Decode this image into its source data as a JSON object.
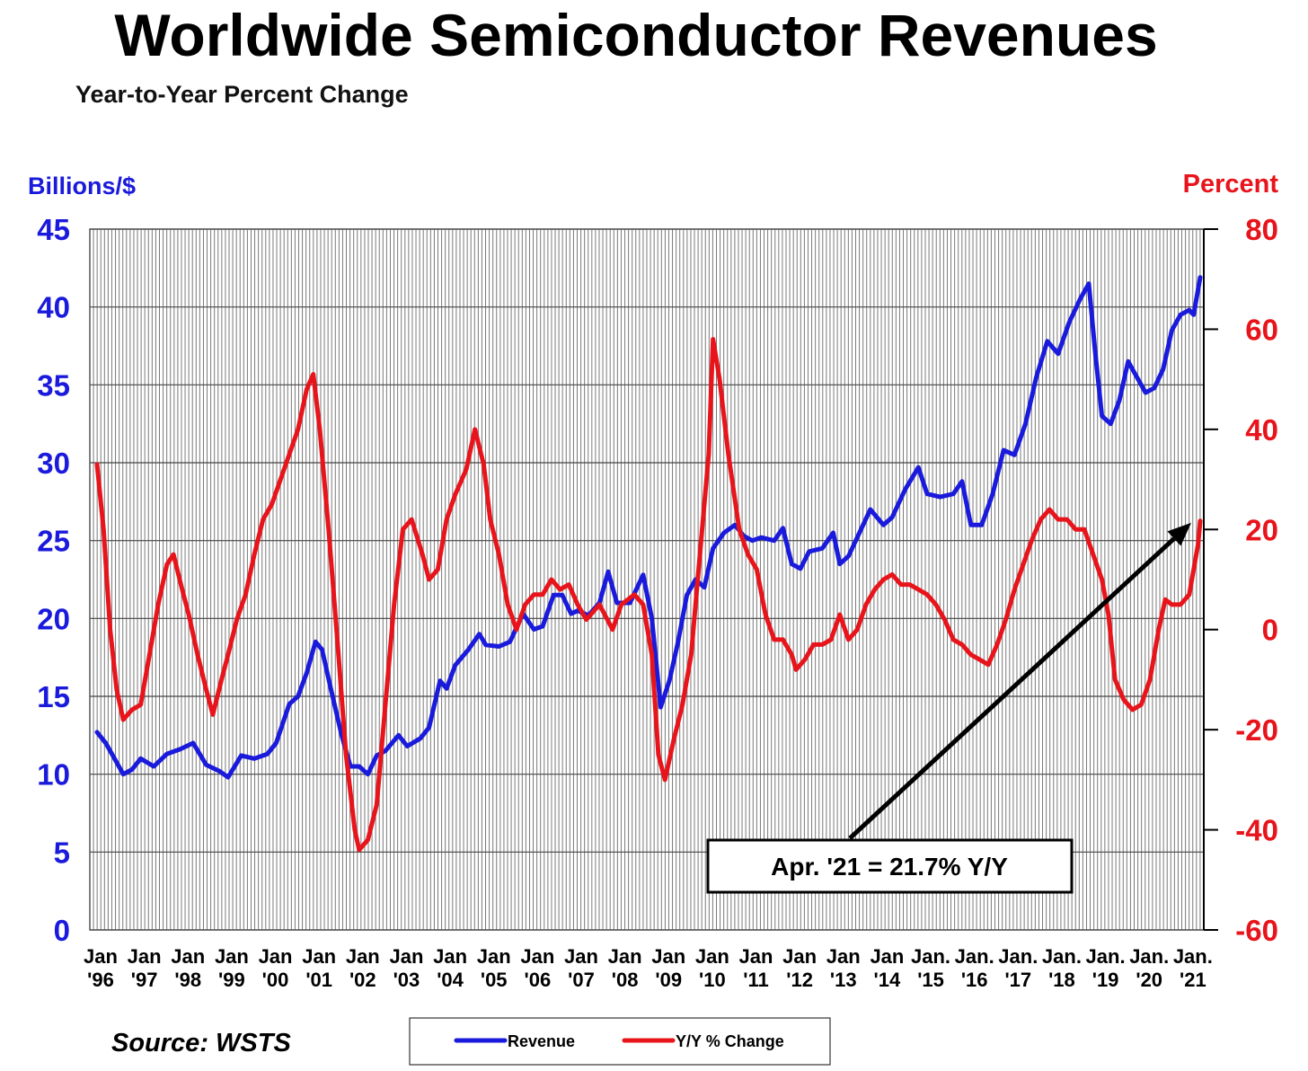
{
  "title": "Worldwide Semiconductor Revenues",
  "subtitle": "Year-to-Year Percent Change",
  "source": "Source: WSTS",
  "chart_data": {
    "type": "line",
    "x_range": [
      1996.0,
      2021.25
    ],
    "x_ticks": [
      {
        "x": 1996,
        "line1": "Jan",
        "line2": "'96"
      },
      {
        "x": 1997,
        "line1": "Jan",
        "line2": "'97"
      },
      {
        "x": 1998,
        "line1": "Jan",
        "line2": "'98"
      },
      {
        "x": 1999,
        "line1": "Jan",
        "line2": "'99"
      },
      {
        "x": 2000,
        "line1": "Jan",
        "line2": "'00"
      },
      {
        "x": 2001,
        "line1": "Jan",
        "line2": "'01"
      },
      {
        "x": 2002,
        "line1": "Jan",
        "line2": "'02"
      },
      {
        "x": 2003,
        "line1": "Jan",
        "line2": "'03"
      },
      {
        "x": 2004,
        "line1": "Jan",
        "line2": "'04"
      },
      {
        "x": 2005,
        "line1": "Jan",
        "line2": "'05"
      },
      {
        "x": 2006,
        "line1": "Jan",
        "line2": "'06"
      },
      {
        "x": 2007,
        "line1": "Jan",
        "line2": "'07"
      },
      {
        "x": 2008,
        "line1": "Jan",
        "line2": "'08"
      },
      {
        "x": 2009,
        "line1": "Jan",
        "line2": "'09"
      },
      {
        "x": 2010,
        "line1": "Jan",
        "line2": "'10"
      },
      {
        "x": 2011,
        "line1": "Jan",
        "line2": "'11"
      },
      {
        "x": 2012,
        "line1": "Jan",
        "line2": "'12"
      },
      {
        "x": 2013,
        "line1": "Jan",
        "line2": "'13"
      },
      {
        "x": 2014,
        "line1": "Jan",
        "line2": "'14"
      },
      {
        "x": 2015,
        "line1": "Jan.",
        "line2": "'15"
      },
      {
        "x": 2016,
        "line1": "Jan.",
        "line2": "'16"
      },
      {
        "x": 2017,
        "line1": "Jan.",
        "line2": "'17"
      },
      {
        "x": 2018,
        "line1": "Jan.",
        "line2": "'18"
      },
      {
        "x": 2019,
        "line1": "Jan.",
        "line2": "'19"
      },
      {
        "x": 2020,
        "line1": "Jan.",
        "line2": "'20"
      },
      {
        "x": 2021,
        "line1": "Jan.",
        "line2": "'21"
      }
    ],
    "left_axis": {
      "label": "Billions/$",
      "range": [
        0,
        45
      ],
      "ticks": [
        0,
        5,
        10,
        15,
        20,
        25,
        30,
        35,
        40,
        45
      ],
      "color": "#1a1adc"
    },
    "right_axis": {
      "label": "Percent",
      "range": [
        -60,
        80
      ],
      "ticks": [
        -60,
        -40,
        -20,
        0,
        20,
        40,
        60,
        80
      ],
      "color": "#e8141b"
    },
    "grid": "monthly vertical lines, horizontal lines at left-axis ticks",
    "legend_position": "bottom-center",
    "series": [
      {
        "name": "Revenue",
        "axis": "left",
        "color": "#1a1adc",
        "points": [
          [
            1996.0,
            12.7
          ],
          [
            1996.2,
            12.0
          ],
          [
            1996.4,
            11.0
          ],
          [
            1996.6,
            10.0
          ],
          [
            1996.8,
            10.3
          ],
          [
            1997.0,
            11.0
          ],
          [
            1997.3,
            10.5
          ],
          [
            1997.6,
            11.3
          ],
          [
            1997.9,
            11.6
          ],
          [
            1998.2,
            12.0
          ],
          [
            1998.5,
            10.6
          ],
          [
            1998.8,
            10.2
          ],
          [
            1999.0,
            9.8
          ],
          [
            1999.3,
            11.2
          ],
          [
            1999.6,
            11.0
          ],
          [
            1999.9,
            11.3
          ],
          [
            2000.1,
            12.0
          ],
          [
            2000.4,
            14.5
          ],
          [
            2000.6,
            15.0
          ],
          [
            2000.8,
            16.5
          ],
          [
            2001.0,
            18.5
          ],
          [
            2001.15,
            18.0
          ],
          [
            2001.35,
            15.5
          ],
          [
            2001.6,
            12.5
          ],
          [
            2001.8,
            10.5
          ],
          [
            2002.0,
            10.5
          ],
          [
            2002.2,
            10.0
          ],
          [
            2002.4,
            11.2
          ],
          [
            2002.6,
            11.5
          ],
          [
            2002.9,
            12.5
          ],
          [
            2003.1,
            11.8
          ],
          [
            2003.4,
            12.3
          ],
          [
            2003.6,
            13.0
          ],
          [
            2003.85,
            16.0
          ],
          [
            2004.0,
            15.5
          ],
          [
            2004.2,
            17.0
          ],
          [
            2004.5,
            18.0
          ],
          [
            2004.75,
            19.0
          ],
          [
            2004.9,
            18.3
          ],
          [
            2005.2,
            18.2
          ],
          [
            2005.45,
            18.5
          ],
          [
            2005.75,
            20.3
          ],
          [
            2006.0,
            19.3
          ],
          [
            2006.2,
            19.5
          ],
          [
            2006.45,
            21.5
          ],
          [
            2006.65,
            21.5
          ],
          [
            2006.85,
            20.3
          ],
          [
            2007.0,
            20.5
          ],
          [
            2007.25,
            20.2
          ],
          [
            2007.5,
            21.0
          ],
          [
            2007.7,
            23.0
          ],
          [
            2007.9,
            21.0
          ],
          [
            2008.2,
            21.0
          ],
          [
            2008.5,
            22.8
          ],
          [
            2008.7,
            20.0
          ],
          [
            2008.9,
            14.3
          ],
          [
            2009.1,
            16.0
          ],
          [
            2009.3,
            18.5
          ],
          [
            2009.5,
            21.5
          ],
          [
            2009.7,
            22.5
          ],
          [
            2009.9,
            22.0
          ],
          [
            2010.1,
            24.5
          ],
          [
            2010.35,
            25.5
          ],
          [
            2010.6,
            26.0
          ],
          [
            2010.8,
            25.3
          ],
          [
            2011.0,
            25.0
          ],
          [
            2011.2,
            25.2
          ],
          [
            2011.5,
            25.0
          ],
          [
            2011.7,
            25.8
          ],
          [
            2011.9,
            23.5
          ],
          [
            2012.1,
            23.2
          ],
          [
            2012.3,
            24.3
          ],
          [
            2012.6,
            24.5
          ],
          [
            2012.85,
            25.5
          ],
          [
            2013.0,
            23.5
          ],
          [
            2013.2,
            24.0
          ],
          [
            2013.5,
            25.8
          ],
          [
            2013.7,
            27.0
          ],
          [
            2014.0,
            26.0
          ],
          [
            2014.2,
            26.5
          ],
          [
            2014.5,
            28.3
          ],
          [
            2014.8,
            29.7
          ],
          [
            2015.0,
            28.0
          ],
          [
            2015.3,
            27.8
          ],
          [
            2015.6,
            28.0
          ],
          [
            2015.8,
            28.8
          ],
          [
            2016.0,
            26.0
          ],
          [
            2016.25,
            26.0
          ],
          [
            2016.5,
            28.0
          ],
          [
            2016.75,
            30.8
          ],
          [
            2017.0,
            30.5
          ],
          [
            2017.25,
            32.5
          ],
          [
            2017.5,
            35.5
          ],
          [
            2017.75,
            37.8
          ],
          [
            2018.0,
            37.0
          ],
          [
            2018.25,
            39.0
          ],
          [
            2018.5,
            40.5
          ],
          [
            2018.7,
            41.5
          ],
          [
            2018.85,
            37.0
          ],
          [
            2019.0,
            33.0
          ],
          [
            2019.2,
            32.5
          ],
          [
            2019.4,
            34.0
          ],
          [
            2019.6,
            36.5
          ],
          [
            2019.8,
            35.5
          ],
          [
            2020.0,
            34.5
          ],
          [
            2020.2,
            34.8
          ],
          [
            2020.4,
            36.0
          ],
          [
            2020.6,
            38.5
          ],
          [
            2020.8,
            39.5
          ],
          [
            2021.0,
            39.8
          ],
          [
            2021.1,
            39.5
          ],
          [
            2021.25,
            41.9
          ]
        ]
      },
      {
        "name": "Y/Y % Change",
        "axis": "right",
        "color": "#e8141b",
        "points": [
          [
            1996.0,
            33
          ],
          [
            1996.15,
            20
          ],
          [
            1996.3,
            0
          ],
          [
            1996.45,
            -12
          ],
          [
            1996.6,
            -18
          ],
          [
            1996.8,
            -16
          ],
          [
            1997.0,
            -15
          ],
          [
            1997.2,
            -5
          ],
          [
            1997.4,
            5
          ],
          [
            1997.6,
            13
          ],
          [
            1997.75,
            15
          ],
          [
            1997.95,
            8
          ],
          [
            1998.1,
            3
          ],
          [
            1998.3,
            -5
          ],
          [
            1998.5,
            -12
          ],
          [
            1998.65,
            -17
          ],
          [
            1998.85,
            -10
          ],
          [
            1999.0,
            -5
          ],
          [
            1999.2,
            2
          ],
          [
            1999.4,
            7
          ],
          [
            1999.6,
            15
          ],
          [
            1999.8,
            22
          ],
          [
            2000.0,
            25
          ],
          [
            2000.2,
            30
          ],
          [
            2000.4,
            35
          ],
          [
            2000.6,
            40
          ],
          [
            2000.8,
            48
          ],
          [
            2000.95,
            51
          ],
          [
            2001.1,
            40
          ],
          [
            2001.3,
            20
          ],
          [
            2001.5,
            -2
          ],
          [
            2001.7,
            -25
          ],
          [
            2001.9,
            -40
          ],
          [
            2002.0,
            -44
          ],
          [
            2002.2,
            -42
          ],
          [
            2002.4,
            -35
          ],
          [
            2002.6,
            -15
          ],
          [
            2002.8,
            5
          ],
          [
            2003.0,
            20
          ],
          [
            2003.2,
            22
          ],
          [
            2003.45,
            15
          ],
          [
            2003.6,
            10
          ],
          [
            2003.8,
            12
          ],
          [
            2004.0,
            22
          ],
          [
            2004.2,
            27
          ],
          [
            2004.45,
            32
          ],
          [
            2004.65,
            40
          ],
          [
            2004.85,
            33
          ],
          [
            2005.0,
            22
          ],
          [
            2005.2,
            15
          ],
          [
            2005.4,
            5
          ],
          [
            2005.6,
            0
          ],
          [
            2005.8,
            5
          ],
          [
            2006.0,
            7
          ],
          [
            2006.2,
            7
          ],
          [
            2006.4,
            10
          ],
          [
            2006.6,
            8
          ],
          [
            2006.8,
            9
          ],
          [
            2007.0,
            5
          ],
          [
            2007.2,
            2
          ],
          [
            2007.5,
            5
          ],
          [
            2007.8,
            0
          ],
          [
            2008.0,
            5
          ],
          [
            2008.3,
            7
          ],
          [
            2008.5,
            5
          ],
          [
            2008.7,
            -5
          ],
          [
            2008.85,
            -25
          ],
          [
            2009.0,
            -30
          ],
          [
            2009.2,
            -22
          ],
          [
            2009.4,
            -15
          ],
          [
            2009.6,
            -5
          ],
          [
            2009.8,
            15
          ],
          [
            2010.0,
            35
          ],
          [
            2010.1,
            58
          ],
          [
            2010.25,
            50
          ],
          [
            2010.45,
            35
          ],
          [
            2010.7,
            20
          ],
          [
            2010.9,
            15
          ],
          [
            2011.1,
            12
          ],
          [
            2011.3,
            3
          ],
          [
            2011.5,
            -2
          ],
          [
            2011.7,
            -2
          ],
          [
            2011.9,
            -5
          ],
          [
            2012.0,
            -8
          ],
          [
            2012.2,
            -6
          ],
          [
            2012.4,
            -3
          ],
          [
            2012.6,
            -3
          ],
          [
            2012.8,
            -2
          ],
          [
            2013.0,
            3
          ],
          [
            2013.2,
            -2
          ],
          [
            2013.4,
            0
          ],
          [
            2013.6,
            5
          ],
          [
            2013.8,
            8
          ],
          [
            2014.0,
            10
          ],
          [
            2014.2,
            11
          ],
          [
            2014.4,
            9
          ],
          [
            2014.6,
            9
          ],
          [
            2014.8,
            8
          ],
          [
            2015.0,
            7
          ],
          [
            2015.2,
            5
          ],
          [
            2015.4,
            2
          ],
          [
            2015.6,
            -2
          ],
          [
            2015.8,
            -3
          ],
          [
            2016.0,
            -5
          ],
          [
            2016.2,
            -6
          ],
          [
            2016.4,
            -7
          ],
          [
            2016.6,
            -3
          ],
          [
            2016.8,
            2
          ],
          [
            2017.0,
            8
          ],
          [
            2017.2,
            13
          ],
          [
            2017.4,
            18
          ],
          [
            2017.6,
            22
          ],
          [
            2017.8,
            24
          ],
          [
            2018.0,
            22
          ],
          [
            2018.2,
            22
          ],
          [
            2018.4,
            20
          ],
          [
            2018.6,
            20
          ],
          [
            2018.8,
            15
          ],
          [
            2019.0,
            10
          ],
          [
            2019.15,
            3
          ],
          [
            2019.3,
            -10
          ],
          [
            2019.5,
            -14
          ],
          [
            2019.7,
            -16
          ],
          [
            2019.9,
            -15
          ],
          [
            2020.1,
            -10
          ],
          [
            2020.3,
            0
          ],
          [
            2020.45,
            6
          ],
          [
            2020.6,
            5
          ],
          [
            2020.8,
            5
          ],
          [
            2021.0,
            7
          ],
          [
            2021.1,
            12
          ],
          [
            2021.2,
            17
          ],
          [
            2021.25,
            21.7
          ]
        ]
      }
    ],
    "annotation": {
      "text": "Apr. '21 = 21.7% Y/Y",
      "target": {
        "x": 2021.25,
        "y": 21.7,
        "axis": "right"
      }
    }
  }
}
